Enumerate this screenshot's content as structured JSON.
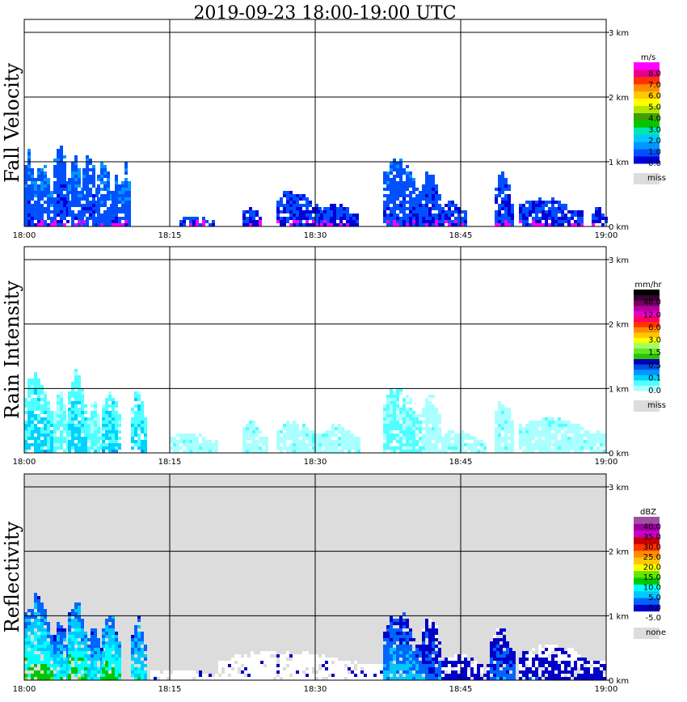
{
  "title": "2019-09-23   18:00-19:00 UTC",
  "chart_data": [
    {
      "type": "heatmap",
      "id": "fv",
      "ylabel": "Fall Velocity",
      "x_ticks": [
        "18:00",
        "18:15",
        "18:30",
        "18:45",
        "19:00"
      ],
      "y_ticks": [
        "0 km",
        "1 km",
        "2 km",
        "3 km"
      ],
      "xlim_minutes": [
        0,
        60
      ],
      "ylim_km": [
        0,
        3.2
      ],
      "background": "#ffffff",
      "legend": {
        "unit": "m/s",
        "colors": [
          "#0000d8",
          "#0050ff",
          "#0096ff",
          "#00c8ff",
          "#00e6b4",
          "#00c800",
          "#40a000",
          "#b4e600",
          "#ffff00",
          "#ffc800",
          "#ff8c00",
          "#ff3200",
          "#e6008c",
          "#ff00ff"
        ],
        "labels": [
          "0.0",
          "1.0",
          "2.0",
          "3.0",
          "4.0",
          "5.0",
          "6.0",
          "7.0",
          "8.0"
        ],
        "miss_label": "miss"
      },
      "echoes": [
        {
          "t0": 0.0,
          "t1": 1.0,
          "top": 1.3,
          "val": 1.2
        },
        {
          "t0": 1.0,
          "t1": 3.0,
          "top": 1.0,
          "val": 1.4
        },
        {
          "t0": 3.0,
          "t1": 4.5,
          "top": 1.4,
          "val": 1.0
        },
        {
          "t0": 4.5,
          "t1": 6.0,
          "top": 1.15,
          "val": 1.3
        },
        {
          "t0": 6.0,
          "t1": 7.5,
          "top": 1.2,
          "val": 1.0
        },
        {
          "t0": 7.5,
          "t1": 9.0,
          "top": 1.05,
          "val": 1.3
        },
        {
          "t0": 9.0,
          "t1": 10.0,
          "top": 0.8,
          "val": 1.1
        },
        {
          "t0": 10.0,
          "t1": 11.0,
          "top": 1.05,
          "val": 1.4
        },
        {
          "t0": 16.0,
          "t1": 19.5,
          "top": 0.15,
          "val": 0.6
        },
        {
          "t0": 22.5,
          "t1": 24.5,
          "top": 0.3,
          "val": 0.5
        },
        {
          "t0": 26.0,
          "t1": 30.5,
          "top": 0.55,
          "val": 0.6
        },
        {
          "t0": 30.5,
          "t1": 34.5,
          "top": 0.35,
          "val": 0.5
        },
        {
          "t0": 37.0,
          "t1": 41.0,
          "top": 1.1,
          "val": 1.0
        },
        {
          "t0": 41.0,
          "t1": 43.0,
          "top": 0.9,
          "val": 0.8
        },
        {
          "t0": 43.0,
          "t1": 45.5,
          "top": 0.4,
          "val": 0.6
        },
        {
          "t0": 48.5,
          "t1": 50.5,
          "top": 0.85,
          "val": 0.8
        },
        {
          "t0": 51.0,
          "t1": 57.5,
          "top": 0.45,
          "val": 0.6
        },
        {
          "t0": 58.5,
          "t1": 60.0,
          "top": 0.3,
          "val": 0.5
        }
      ]
    },
    {
      "type": "heatmap",
      "id": "ri",
      "ylabel": "Rain Intensity",
      "x_ticks": [
        "18:00",
        "18:15",
        "18:30",
        "18:45",
        "19:00"
      ],
      "y_ticks": [
        "0 km",
        "1 km",
        "2 km",
        "3 km"
      ],
      "xlim_minutes": [
        0,
        60
      ],
      "ylim_km": [
        0,
        3.2
      ],
      "background": "#ffffff",
      "legend": {
        "unit": "mm/hr",
        "colors": [
          "#aaffff",
          "#50ffff",
          "#00d2ff",
          "#0096ff",
          "#0050e6",
          "#0000b4",
          "#28c800",
          "#64e628",
          "#a0ff64",
          "#ffff00",
          "#ffc800",
          "#ff8c00",
          "#ff3200",
          "#ff0064",
          "#e600c8",
          "#b400a0",
          "#780064",
          "#3c0032",
          "#000000"
        ],
        "labels": [
          "0.0",
          "0.1",
          "0.5",
          "1.5",
          "3.0",
          "6.0",
          "12.0",
          "48.0"
        ],
        "miss_label": "miss"
      },
      "echoes": [
        {
          "t0": 0.0,
          "t1": 3.0,
          "top": 1.3,
          "val": 2
        },
        {
          "t0": 3.0,
          "t1": 4.5,
          "top": 1.0,
          "val": 1
        },
        {
          "t0": 4.5,
          "t1": 6.5,
          "top": 1.3,
          "val": 2
        },
        {
          "t0": 6.5,
          "t1": 8.0,
          "top": 0.8,
          "val": 1
        },
        {
          "t0": 8.0,
          "t1": 10.0,
          "top": 1.05,
          "val": 2
        },
        {
          "t0": 11.0,
          "t1": 12.5,
          "top": 1.0,
          "val": 2
        },
        {
          "t0": 15.0,
          "t1": 20.0,
          "top": 0.3,
          "val": 0
        },
        {
          "t0": 22.5,
          "t1": 25.0,
          "top": 0.5,
          "val": 0
        },
        {
          "t0": 26.0,
          "t1": 31.0,
          "top": 0.5,
          "val": 0
        },
        {
          "t0": 31.0,
          "t1": 34.5,
          "top": 0.45,
          "val": 0
        },
        {
          "t0": 37.0,
          "t1": 41.0,
          "top": 1.05,
          "val": 1
        },
        {
          "t0": 41.0,
          "t1": 43.0,
          "top": 1.0,
          "val": 0
        },
        {
          "t0": 43.0,
          "t1": 47.5,
          "top": 0.35,
          "val": 0
        },
        {
          "t0": 48.5,
          "t1": 50.5,
          "top": 0.85,
          "val": 0
        },
        {
          "t0": 51.0,
          "t1": 60.0,
          "top": 0.55,
          "val": 0
        }
      ]
    },
    {
      "type": "heatmap",
      "id": "rf",
      "ylabel": "Reflectivity",
      "x_ticks": [
        "18:00",
        "18:15",
        "18:30",
        "18:45",
        "19:00"
      ],
      "y_ticks": [
        "0 km",
        "1 km",
        "2 km",
        "3 km"
      ],
      "xlim_minutes": [
        0,
        60
      ],
      "ylim_km": [
        0,
        3.2
      ],
      "background": "#dcdcdc",
      "legend": {
        "unit": "dBZ",
        "colors": [
          "#ffffff",
          "#0000c8",
          "#0064ff",
          "#00c8ff",
          "#00ffff",
          "#00c800",
          "#64e600",
          "#ffff00",
          "#ffc800",
          "#ff8c00",
          "#ff3200",
          "#c80000",
          "#c800c8",
          "#a000a0",
          "#a050a0"
        ],
        "labels": [
          "-5.0",
          "0.0",
          "5.0",
          "10.0",
          "15.0",
          "20.0",
          "25.0",
          "30.0",
          "35.0",
          "40.0"
        ],
        "miss_label": "none"
      },
      "echoes": [
        {
          "t0": 0.0,
          "t1": 3.0,
          "top": 1.4,
          "val": 5
        },
        {
          "t0": 3.0,
          "t1": 4.5,
          "top": 1.0,
          "val": 4
        },
        {
          "t0": 4.5,
          "t1": 6.5,
          "top": 1.35,
          "val": 5
        },
        {
          "t0": 6.5,
          "t1": 8.0,
          "top": 0.9,
          "val": 4
        },
        {
          "t0": 8.0,
          "t1": 10.0,
          "top": 1.05,
          "val": 5
        },
        {
          "t0": 11.0,
          "t1": 12.5,
          "top": 1.0,
          "val": 4
        },
        {
          "t0": 13.0,
          "t1": 20.0,
          "top": 0.15,
          "val": 0
        },
        {
          "t0": 20.0,
          "t1": 37.0,
          "top": 0.45,
          "val": 0
        },
        {
          "t0": 37.0,
          "t1": 41.0,
          "top": 1.1,
          "val": 3
        },
        {
          "t0": 41.0,
          "t1": 43.0,
          "top": 1.05,
          "val": 2
        },
        {
          "t0": 43.0,
          "t1": 48.0,
          "top": 0.4,
          "val": 1
        },
        {
          "t0": 48.0,
          "t1": 50.5,
          "top": 0.85,
          "val": 2
        },
        {
          "t0": 51.0,
          "t1": 60.0,
          "top": 0.55,
          "val": 1
        }
      ]
    }
  ]
}
